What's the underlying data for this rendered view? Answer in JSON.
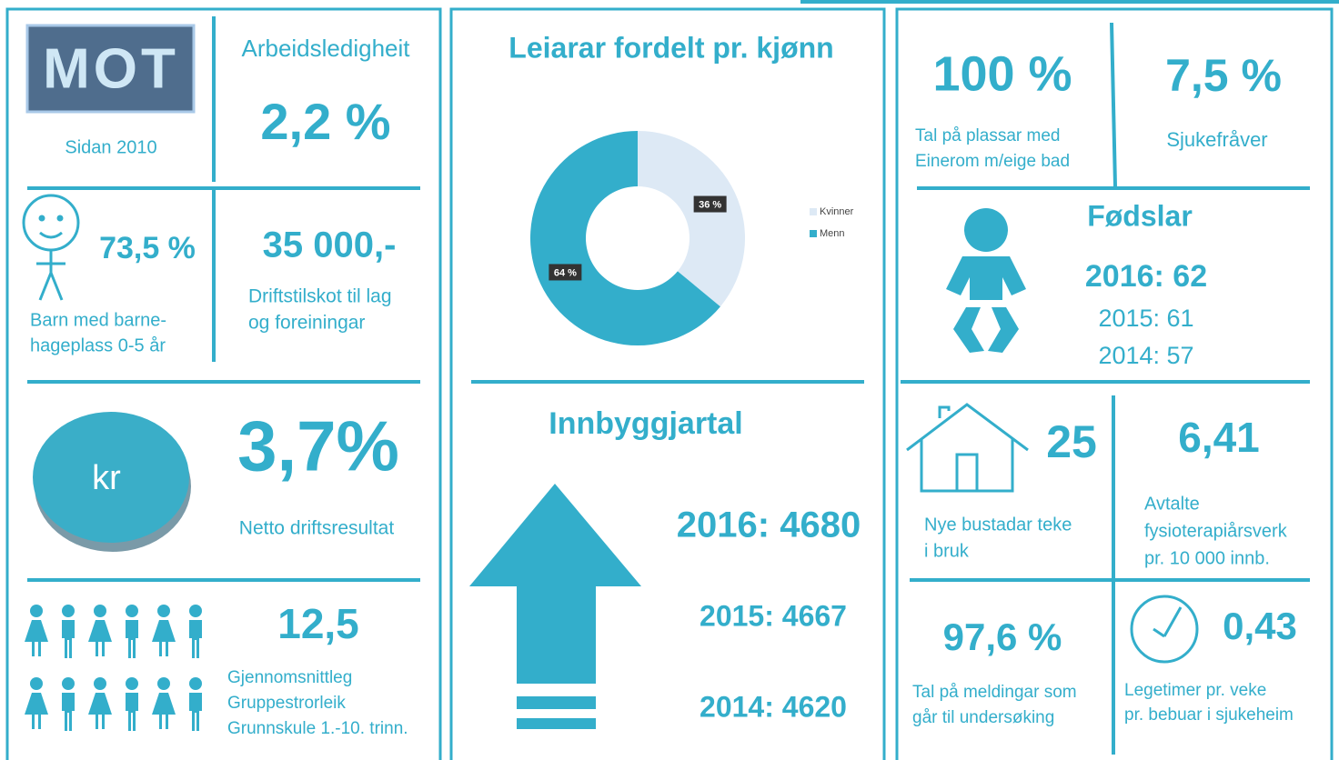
{
  "left": {
    "logo": "MOT",
    "since": "Sidan 2010",
    "unemployment": {
      "label": "Arbeidsledigheit",
      "value": "2,2 %"
    },
    "kindergarten": {
      "value": "73,5 %",
      "lines": [
        "Barn med barne-",
        "hageplass 0-5 år"
      ]
    },
    "grants": {
      "value": "35 000,-",
      "lines": [
        "Driftstilskot til lag",
        "og foreiningar"
      ]
    },
    "result": {
      "icon": "kr",
      "value": "3,7%",
      "label": "Netto driftsresultat"
    },
    "class_size": {
      "value": "12,5",
      "lines": [
        "Gjennomsnittleg",
        "Gruppestrorleik",
        "Grunnskule  1.-10. trinn."
      ]
    }
  },
  "chart_data": {
    "type": "donut",
    "title": "Leiarar fordelt pr. kjønn",
    "categories": [
      "Kvinner",
      "Menn"
    ],
    "values": [
      36,
      64
    ],
    "value_labels": [
      "36 %",
      "64 %"
    ],
    "colors": [
      "#dde9f5",
      "#33aecb"
    ],
    "legend": "right"
  },
  "population": {
    "title": "Innbyggjartal",
    "years": [
      "2016: 4680",
      "2015: 4667",
      "2014: 4620"
    ]
  },
  "right": {
    "single_rooms": {
      "value": "100 %",
      "lines": [
        "Tal på plassar med",
        "Einerom m/eige bad"
      ]
    },
    "sick_leave": {
      "value": "7,5 %",
      "label": "Sjukefråver"
    },
    "births": {
      "title": "Fødslar",
      "years": [
        "2016: 62",
        "2015: 61",
        "2014: 57"
      ]
    },
    "housing": {
      "value": "25",
      "lines": [
        "Nye bustadar teke",
        "i bruk"
      ]
    },
    "physio": {
      "value": "6,41",
      "lines": [
        "Avtalte",
        "fysioterapiårsverk",
        "pr. 10 000 innb."
      ]
    },
    "reports": {
      "value": "97,6 %",
      "lines": [
        "Tal på meldingar som",
        "går til undersøking"
      ]
    },
    "doctor": {
      "value": "0,43",
      "lines": [
        "Legetimer pr. veke",
        "pr. bebuar i sjukeheim"
      ]
    }
  }
}
